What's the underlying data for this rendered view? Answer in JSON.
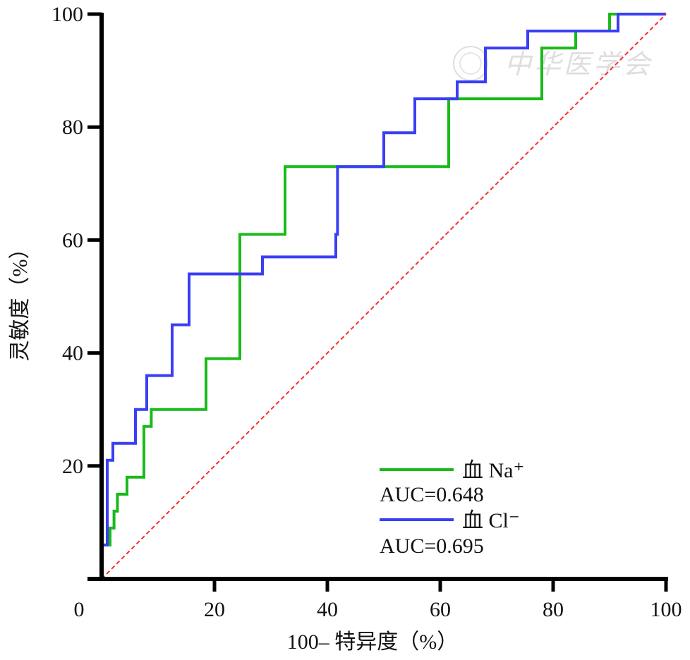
{
  "chart_data": {
    "type": "line",
    "title": "",
    "xlabel": "100– 特异度（%）",
    "ylabel": "灵敏度（%）",
    "xlim": [
      0,
      100
    ],
    "ylim": [
      0,
      100
    ],
    "x_ticks": [
      "0",
      "20",
      "40",
      "60",
      "80",
      "100"
    ],
    "y_ticks": [
      "20",
      "40",
      "60",
      "80",
      "100"
    ],
    "grid": false,
    "legend_position": "bottom-right",
    "watermark": "中华医学会",
    "series": [
      {
        "name": "血 Na⁺",
        "auc_label": "AUC=0.648",
        "color": "#1aba1a",
        "x": [
          0,
          0,
          1.5,
          1.5,
          2.2,
          2.2,
          2.8,
          2.8,
          4.5,
          4.5,
          7.5,
          7.5,
          8.8,
          8.8,
          18.5,
          18.5,
          24.5,
          24.5,
          32.5,
          32.5,
          61.5,
          61.5,
          78,
          78,
          84,
          84,
          90,
          90,
          100
        ],
        "y": [
          0,
          6,
          6,
          9,
          9,
          12,
          12,
          15,
          15,
          18,
          18,
          27,
          27,
          30,
          30,
          39,
          39,
          61,
          61,
          73,
          73,
          85,
          85,
          94,
          94,
          97,
          97,
          100,
          100
        ]
      },
      {
        "name": "血 Cl⁻",
        "auc_label": "AUC=0.695",
        "color": "#3a3ef5",
        "x": [
          0,
          0,
          1,
          1,
          2,
          2,
          6,
          6,
          8,
          8,
          12.5,
          12.5,
          15.5,
          15.5,
          28.5,
          28.5,
          41.5,
          41.5,
          41.8,
          41.8,
          50,
          50,
          55.5,
          55.5,
          63,
          63,
          68,
          68,
          75.5,
          75.5,
          91.5,
          91.5,
          100
        ],
        "y": [
          0,
          6,
          6,
          21,
          21,
          24,
          24,
          30,
          30,
          36,
          36,
          45,
          45,
          54,
          54,
          57,
          57,
          61,
          61,
          73,
          73,
          79,
          79,
          85,
          85,
          88,
          88,
          94,
          94,
          97,
          97,
          100,
          100
        ]
      },
      {
        "color": "#ff2a2a",
        "dashed": true,
        "x": [
          0,
          100
        ],
        "y": [
          0,
          100
        ]
      }
    ]
  }
}
